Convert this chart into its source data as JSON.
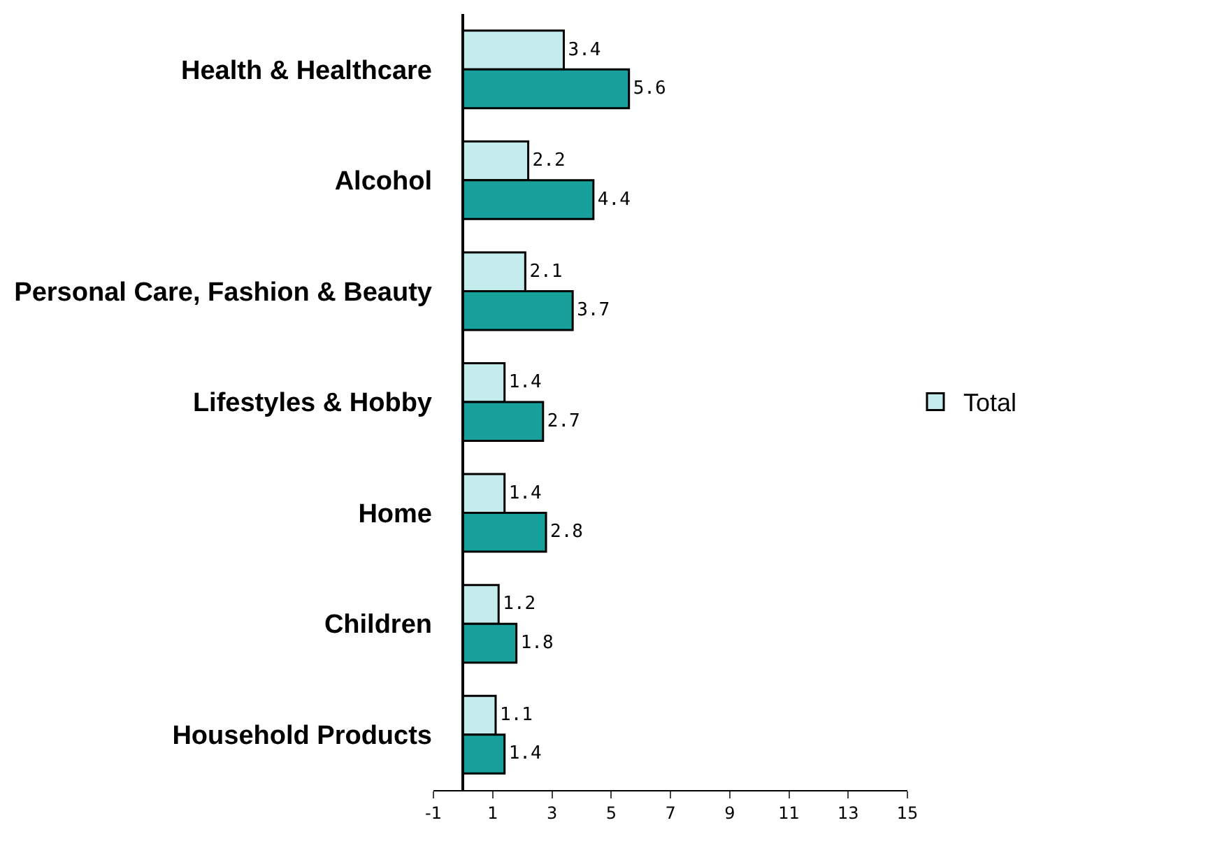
{
  "chart_data": {
    "type": "bar",
    "orientation": "horizontal",
    "categories": [
      "Health & Healthcare",
      "Alcohol",
      "Personal Care, Fashion & Beauty",
      "Lifestyles & Hobby",
      "Home",
      "Children",
      "Household Products"
    ],
    "series": [
      {
        "name": "Total",
        "color": "#c4ecec",
        "values": [
          3.4,
          2.2,
          2.1,
          1.4,
          1.4,
          1.2,
          1.1
        ]
      },
      {
        "color": "#17a09c",
        "values": [
          5.6,
          4.4,
          3.7,
          2.7,
          2.8,
          1.8,
          1.4
        ]
      }
    ],
    "xlim": [
      -1,
      15
    ],
    "xticks": [
      -1,
      1,
      3,
      5,
      7,
      9,
      11,
      13,
      15
    ],
    "data_labels": true,
    "legend": "right"
  }
}
